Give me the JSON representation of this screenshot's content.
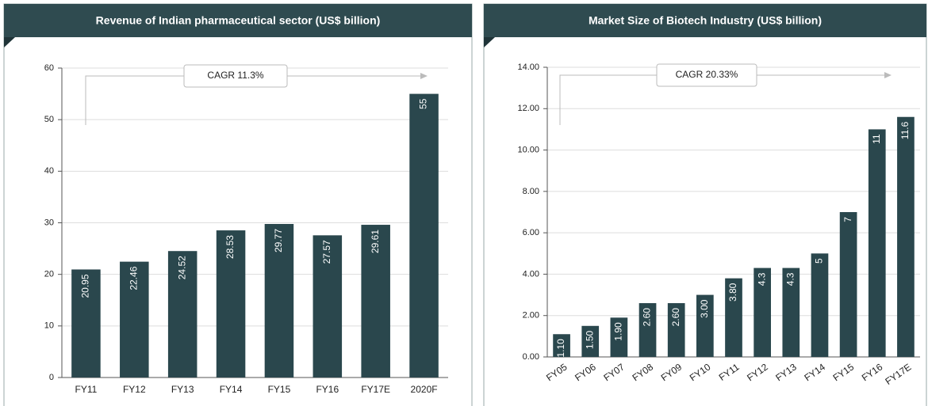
{
  "chart_data": [
    {
      "type": "bar",
      "title": "Revenue of Indian pharmaceutical sector (US$ billion)",
      "annotation": "CAGR 11.3%",
      "categories": [
        "FY11",
        "FY12",
        "FY13",
        "FY14",
        "FY15",
        "FY16",
        "FY17E",
        "2020F"
      ],
      "values": [
        20.95,
        22.46,
        24.52,
        28.53,
        29.77,
        27.57,
        29.61,
        55
      ],
      "color": "#2a474d",
      "ylim": [
        0,
        60
      ],
      "yticks": [
        0,
        10,
        20,
        30,
        40,
        50,
        60
      ],
      "grid": true
    },
    {
      "type": "bar",
      "title": "Market Size of Biotech Industry (US$ billion)",
      "annotation": "CAGR 20.33%",
      "categories": [
        "FY05",
        "FY06",
        "FY07",
        "FY08",
        "FY09",
        "FY10",
        "FY11",
        "FY12",
        "FY13",
        "FY14",
        "FY15",
        "FY16",
        "FY17E"
      ],
      "values": [
        1.1,
        1.5,
        1.9,
        2.6,
        2.6,
        3.0,
        3.8,
        4.3,
        4.3,
        5,
        7,
        11,
        11.6
      ],
      "value_labels": [
        "1.10",
        "1.50",
        "1.90",
        "2.60",
        "2.60",
        "3.00",
        "3.80",
        "4.3",
        "4.3",
        "5",
        "7",
        "11",
        "11.6"
      ],
      "color": "#2a474d",
      "ylim": [
        0,
        14
      ],
      "yticks": [
        {
          "value": 0,
          "label": "0.00"
        },
        {
          "value": 2,
          "label": "2.00"
        },
        {
          "value": 4,
          "label": "4.00"
        },
        {
          "value": 6,
          "label": "6.00"
        },
        {
          "value": 8,
          "label": "8.00"
        },
        {
          "value": 10,
          "label": "10.00"
        },
        {
          "value": 12,
          "label": "12.00"
        },
        {
          "value": 14,
          "label": "14.00"
        }
      ],
      "grid": true
    }
  ]
}
